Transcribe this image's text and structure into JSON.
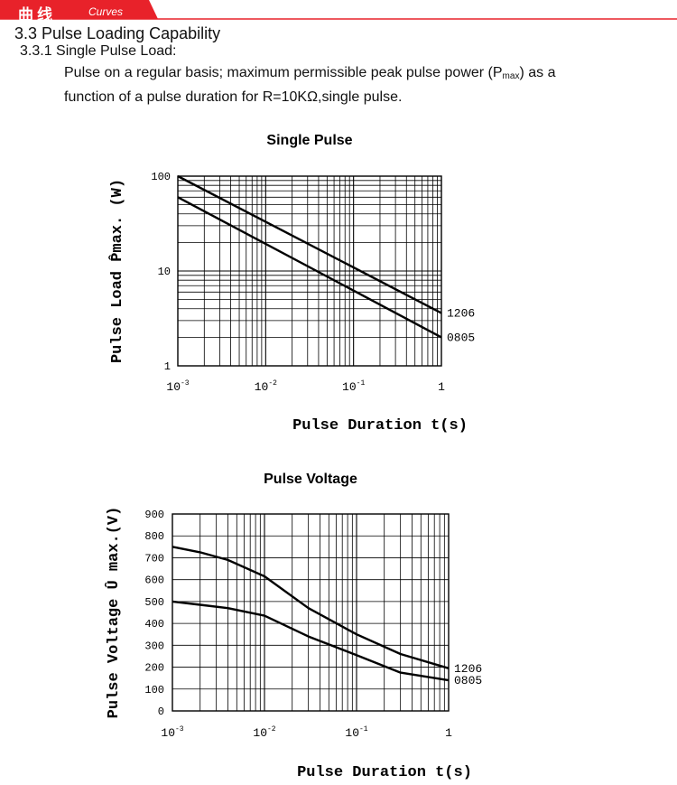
{
  "header": {
    "title_cn": "曲线",
    "title_en": "Curves",
    "accent_color": "#e8222a"
  },
  "section": {
    "heading": "3.3 Pulse Loading Capability",
    "subheading": "3.3.1 Single Pulse Load:",
    "description_line1_pre": "Pulse on a regular basis; maximum permissible peak pulse power (P",
    "description_sub": "max",
    "description_line1_post": ") as a",
    "description_line2": "function of a pulse duration for R=10KΩ,single pulse."
  },
  "chart_data": [
    {
      "type": "line",
      "title": "Single Pulse",
      "xlabel": "Pulse Duration t(s)",
      "ylabel": "Pulse Load P̂max. (W)",
      "xscale": "log",
      "yscale": "log",
      "xlim": [
        0.001,
        1
      ],
      "ylim": [
        1,
        100
      ],
      "x_ticks": [
        {
          "base": "10",
          "exp": "-3"
        },
        {
          "base": "10",
          "exp": "-2"
        },
        {
          "base": "10",
          "exp": "-1"
        },
        {
          "base": "1",
          "exp": ""
        }
      ],
      "y_ticks": [
        "1",
        "10",
        "100"
      ],
      "grid": true,
      "series": [
        {
          "name": "1206",
          "x": [
            0.001,
            1
          ],
          "y": [
            100,
            3.6
          ]
        },
        {
          "name": "0805",
          "x": [
            0.001,
            1
          ],
          "y": [
            60,
            2.0
          ]
        }
      ]
    },
    {
      "type": "line",
      "title": "Pulse Voltage",
      "xlabel": "Pulse Duration t(s)",
      "ylabel": "Pulse Voltage Û max.(V)",
      "xscale": "log",
      "yscale": "linear",
      "xlim": [
        0.001,
        1
      ],
      "ylim": [
        0,
        900
      ],
      "x_ticks": [
        {
          "base": "10",
          "exp": "-3"
        },
        {
          "base": "10",
          "exp": "-2"
        },
        {
          "base": "10",
          "exp": "-1"
        },
        {
          "base": "1",
          "exp": ""
        }
      ],
      "y_ticks": [
        "0",
        "100",
        "200",
        "300",
        "400",
        "500",
        "600",
        "700",
        "800",
        "900"
      ],
      "grid": true,
      "series": [
        {
          "name": "1206",
          "x": [
            0.001,
            0.002,
            0.004,
            0.01,
            0.03,
            0.1,
            0.3,
            1
          ],
          "y": [
            750,
            725,
            690,
            615,
            470,
            350,
            260,
            195
          ]
        },
        {
          "name": "0805",
          "x": [
            0.001,
            0.002,
            0.004,
            0.01,
            0.03,
            0.1,
            0.3,
            1
          ],
          "y": [
            500,
            485,
            470,
            435,
            340,
            255,
            175,
            140
          ]
        }
      ]
    }
  ]
}
